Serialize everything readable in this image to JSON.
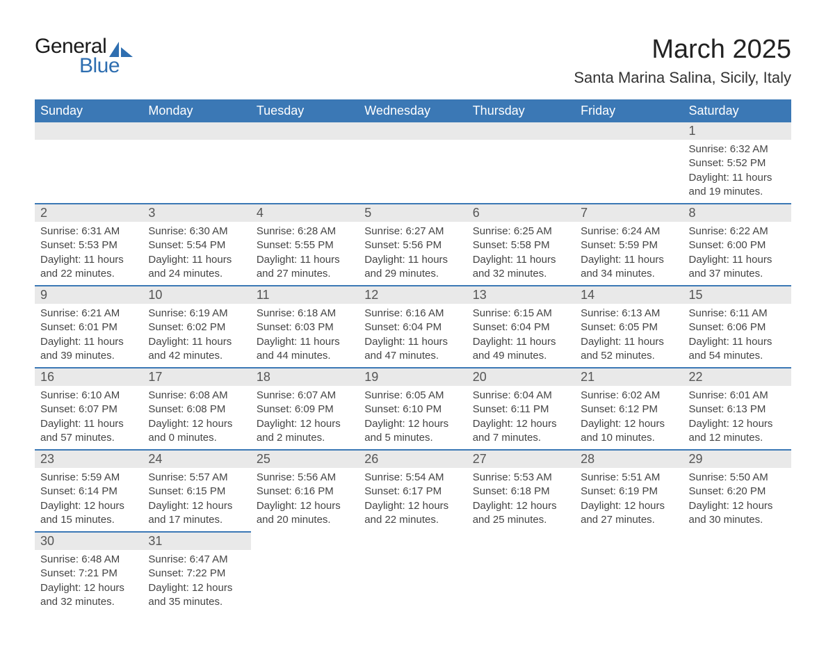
{
  "brand": {
    "word1": "General",
    "word2": "Blue",
    "text_color": "#1a1a1a",
    "accent_color": "#2e6eb0"
  },
  "title": {
    "month": "March 2025",
    "location": "Santa Marina Salina, Sicily, Italy"
  },
  "calendar": {
    "header_bg": "#3b78b5",
    "header_fg": "#ffffff",
    "daybar_bg": "#e9e9e9",
    "row_border": "#3b78b5",
    "day_names": [
      "Sunday",
      "Monday",
      "Tuesday",
      "Wednesday",
      "Thursday",
      "Friday",
      "Saturday"
    ],
    "weeks": [
      [
        null,
        null,
        null,
        null,
        null,
        null,
        {
          "n": "1",
          "sr": "6:32 AM",
          "ss": "5:52 PM",
          "dl": "11 hours and 19 minutes."
        }
      ],
      [
        {
          "n": "2",
          "sr": "6:31 AM",
          "ss": "5:53 PM",
          "dl": "11 hours and 22 minutes."
        },
        {
          "n": "3",
          "sr": "6:30 AM",
          "ss": "5:54 PM",
          "dl": "11 hours and 24 minutes."
        },
        {
          "n": "4",
          "sr": "6:28 AM",
          "ss": "5:55 PM",
          "dl": "11 hours and 27 minutes."
        },
        {
          "n": "5",
          "sr": "6:27 AM",
          "ss": "5:56 PM",
          "dl": "11 hours and 29 minutes."
        },
        {
          "n": "6",
          "sr": "6:25 AM",
          "ss": "5:58 PM",
          "dl": "11 hours and 32 minutes."
        },
        {
          "n": "7",
          "sr": "6:24 AM",
          "ss": "5:59 PM",
          "dl": "11 hours and 34 minutes."
        },
        {
          "n": "8",
          "sr": "6:22 AM",
          "ss": "6:00 PM",
          "dl": "11 hours and 37 minutes."
        }
      ],
      [
        {
          "n": "9",
          "sr": "6:21 AM",
          "ss": "6:01 PM",
          "dl": "11 hours and 39 minutes."
        },
        {
          "n": "10",
          "sr": "6:19 AM",
          "ss": "6:02 PM",
          "dl": "11 hours and 42 minutes."
        },
        {
          "n": "11",
          "sr": "6:18 AM",
          "ss": "6:03 PM",
          "dl": "11 hours and 44 minutes."
        },
        {
          "n": "12",
          "sr": "6:16 AM",
          "ss": "6:04 PM",
          "dl": "11 hours and 47 minutes."
        },
        {
          "n": "13",
          "sr": "6:15 AM",
          "ss": "6:04 PM",
          "dl": "11 hours and 49 minutes."
        },
        {
          "n": "14",
          "sr": "6:13 AM",
          "ss": "6:05 PM",
          "dl": "11 hours and 52 minutes."
        },
        {
          "n": "15",
          "sr": "6:11 AM",
          "ss": "6:06 PM",
          "dl": "11 hours and 54 minutes."
        }
      ],
      [
        {
          "n": "16",
          "sr": "6:10 AM",
          "ss": "6:07 PM",
          "dl": "11 hours and 57 minutes."
        },
        {
          "n": "17",
          "sr": "6:08 AM",
          "ss": "6:08 PM",
          "dl": "12 hours and 0 minutes."
        },
        {
          "n": "18",
          "sr": "6:07 AM",
          "ss": "6:09 PM",
          "dl": "12 hours and 2 minutes."
        },
        {
          "n": "19",
          "sr": "6:05 AM",
          "ss": "6:10 PM",
          "dl": "12 hours and 5 minutes."
        },
        {
          "n": "20",
          "sr": "6:04 AM",
          "ss": "6:11 PM",
          "dl": "12 hours and 7 minutes."
        },
        {
          "n": "21",
          "sr": "6:02 AM",
          "ss": "6:12 PM",
          "dl": "12 hours and 10 minutes."
        },
        {
          "n": "22",
          "sr": "6:01 AM",
          "ss": "6:13 PM",
          "dl": "12 hours and 12 minutes."
        }
      ],
      [
        {
          "n": "23",
          "sr": "5:59 AM",
          "ss": "6:14 PM",
          "dl": "12 hours and 15 minutes."
        },
        {
          "n": "24",
          "sr": "5:57 AM",
          "ss": "6:15 PM",
          "dl": "12 hours and 17 minutes."
        },
        {
          "n": "25",
          "sr": "5:56 AM",
          "ss": "6:16 PM",
          "dl": "12 hours and 20 minutes."
        },
        {
          "n": "26",
          "sr": "5:54 AM",
          "ss": "6:17 PM",
          "dl": "12 hours and 22 minutes."
        },
        {
          "n": "27",
          "sr": "5:53 AM",
          "ss": "6:18 PM",
          "dl": "12 hours and 25 minutes."
        },
        {
          "n": "28",
          "sr": "5:51 AM",
          "ss": "6:19 PM",
          "dl": "12 hours and 27 minutes."
        },
        {
          "n": "29",
          "sr": "5:50 AM",
          "ss": "6:20 PM",
          "dl": "12 hours and 30 minutes."
        }
      ],
      [
        {
          "n": "30",
          "sr": "6:48 AM",
          "ss": "7:21 PM",
          "dl": "12 hours and 32 minutes."
        },
        {
          "n": "31",
          "sr": "6:47 AM",
          "ss": "7:22 PM",
          "dl": "12 hours and 35 minutes."
        },
        null,
        null,
        null,
        null,
        null
      ]
    ],
    "labels": {
      "sunrise": "Sunrise:",
      "sunset": "Sunset:",
      "daylight": "Daylight:"
    }
  }
}
